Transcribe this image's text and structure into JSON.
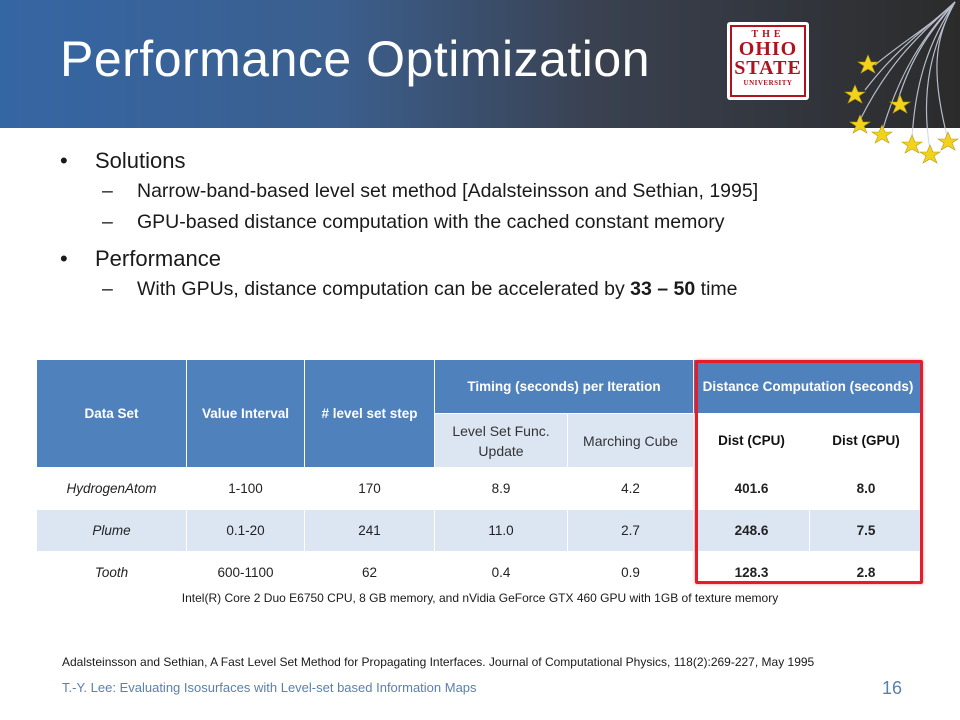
{
  "slide": {
    "title": "Performance Optimization",
    "logo": {
      "the": "THE",
      "ohio": "OHIO",
      "state": "STATE",
      "university": "UNIVERSITY"
    },
    "bullets": [
      {
        "label": "Solutions"
      },
      {
        "label": "Performance"
      }
    ],
    "subbullets": {
      "solutions_1": "Narrow-band-based level set method [Adalsteinsson and Sethian, 1995]",
      "solutions_2": "GPU-based distance computation with the cached constant memory",
      "performance_pre": "With GPUs, distance computation can be accelerated by ",
      "performance_bold": "33 – 50",
      "performance_post": " time"
    },
    "bullet_glyph": "•",
    "dash_glyph": "–"
  },
  "table": {
    "headers": {
      "data_set": "Data Set",
      "value_interval": "Value Interval",
      "level_set_step": "# level set step",
      "timing": "Timing (seconds) per Iteration",
      "distance": "Distance Computation (seconds)",
      "level_set_update": "Level Set Func. Update",
      "marching_cube": "Marching Cube",
      "dist_cpu": "Dist (CPU)",
      "dist_gpu": "Dist (GPU)"
    },
    "rows": [
      {
        "name": "HydrogenAtom",
        "interval": "1-100",
        "steps": "170",
        "update": "8.9",
        "marching": "4.2",
        "cpu": "401.6",
        "gpu": "8.0"
      },
      {
        "name": "Plume",
        "interval": "0.1-20",
        "steps": "241",
        "update": "11.0",
        "marching": "2.7",
        "cpu": "248.6",
        "gpu": "7.5"
      },
      {
        "name": "Tooth",
        "interval": "600-1100",
        "steps": "62",
        "update": "0.4",
        "marching": "0.9",
        "cpu": "128.3",
        "gpu": "2.8"
      }
    ]
  },
  "specs": "Intel(R) Core 2 Duo E6750 CPU, 8 GB memory, and nVidia GeForce GTX 460 GPU with 1GB of texture memory",
  "reference": "Adalsteinsson and Sethian, A Fast Level Set Method for Propagating Interfaces. Journal of Computational Physics, 118(2):269-227, May 1995",
  "footer": "T.-Y. Lee: Evaluating Isosurfaces with Level-set based Information Maps",
  "page_number": "16",
  "colors": {
    "header_blue": "#3566a4",
    "table_blue": "#4f81bd",
    "highlight_red": "#e81b2a",
    "footer_blue": "#5a7fb0",
    "star_yellow": "#f3d21b"
  }
}
